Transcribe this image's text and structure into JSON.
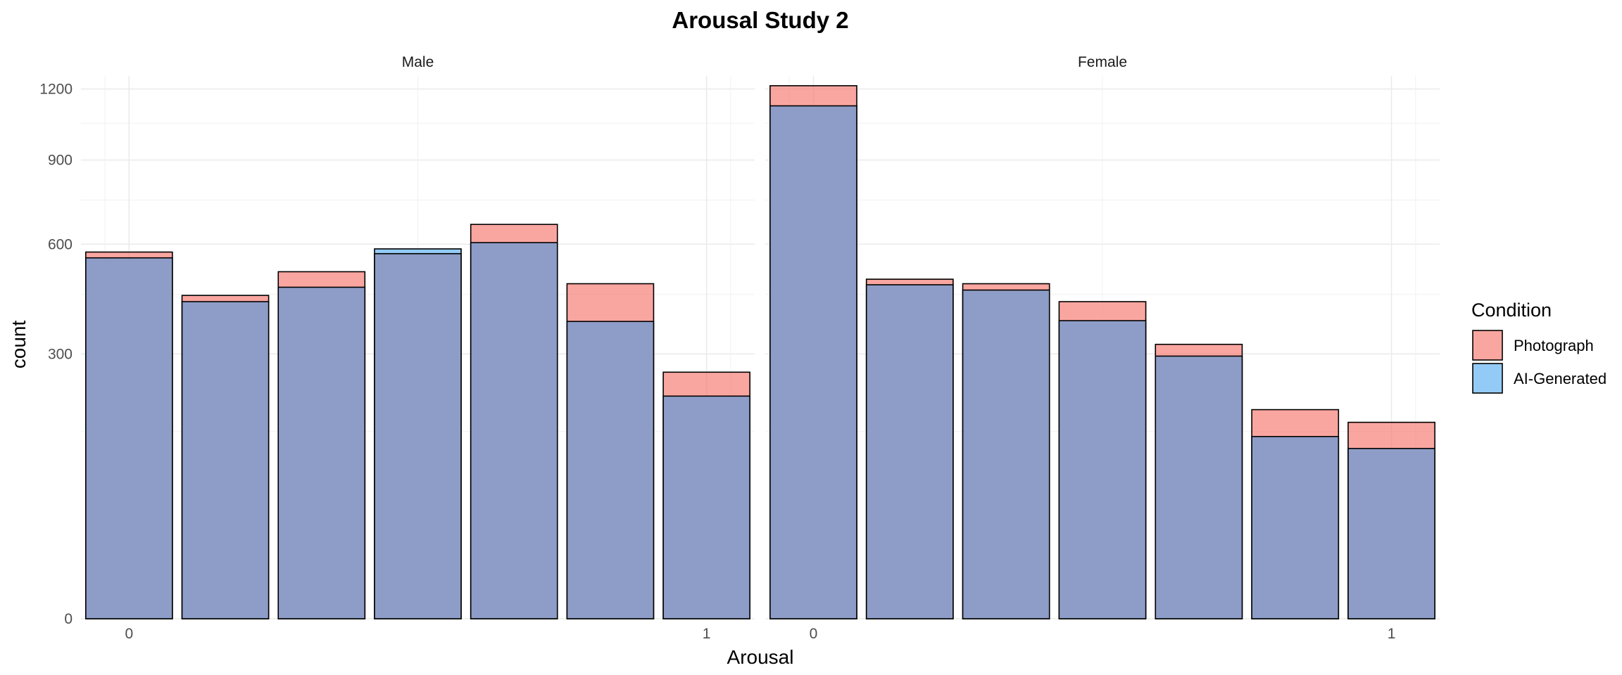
{
  "chart_data": {
    "type": "bar",
    "title": "Arousal Study 2",
    "xlabel": "Arousal",
    "ylabel": "count",
    "y_scale": "sqrt",
    "ylim": [
      0,
      1200
    ],
    "y_ticks": [
      0,
      300,
      600,
      900,
      1200
    ],
    "y_tick_labels": [
      "0",
      "300",
      "600",
      "900",
      "1200"
    ],
    "x_range": [
      -0.08333,
      1.08333
    ],
    "x_ticks": [
      0,
      1
    ],
    "x_tick_labels": [
      "0",
      "1"
    ],
    "bins": [
      0,
      0.16667,
      0.33333,
      0.5,
      0.66667,
      0.83333,
      1
    ],
    "bar_width": 0.15,
    "grid": true,
    "legend_title": "Condition",
    "legend_position": "right",
    "series": [
      {
        "name": "Photograph",
        "color": "#F8766D"
      },
      {
        "name": "AI-Generated",
        "color": "#4BA8F0"
      }
    ],
    "overlap_color": "#8E9DC7",
    "facets": [
      {
        "label": "Male",
        "Photograph": [
          575,
          447,
          515,
          570,
          665,
          480,
          260
        ],
        "AI-Generated": [
          557,
          430,
          470,
          585,
          605,
          378,
          212
        ]
      },
      {
        "label": "Female",
        "Photograph": [
          1215,
          493,
          480,
          430,
          322,
          187,
          165
        ],
        "AI-Generated": [
          1125,
          477,
          462,
          380,
          295,
          142,
          124
        ]
      }
    ]
  }
}
